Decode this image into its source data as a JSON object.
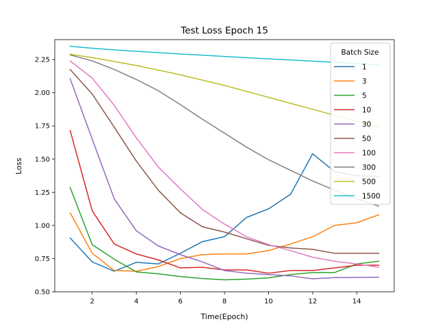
{
  "chart_data": {
    "type": "line",
    "title": "Test Loss Epoch 15",
    "xlabel": "Time(Epoch)",
    "ylabel": "Loss",
    "xlim": [
      0.3,
      15.7
    ],
    "ylim": [
      0.5,
      2.4
    ],
    "x_ticks": [
      2,
      4,
      6,
      8,
      10,
      12,
      14
    ],
    "y_ticks": [
      0.5,
      0.75,
      1.0,
      1.25,
      1.5,
      1.75,
      2.0,
      2.25
    ],
    "y_tick_labels": [
      "0.50",
      "0.75",
      "1.00",
      "1.25",
      "1.50",
      "1.75",
      "2.00",
      "2.25"
    ],
    "grid": false,
    "legend_title": "Batch Size",
    "legend_position": "upper-right",
    "x": [
      1,
      2,
      3,
      4,
      5,
      6,
      7,
      8,
      9,
      10,
      11,
      12,
      13,
      14,
      15
    ],
    "series": [
      {
        "name": "1",
        "color": "#1f77b4",
        "values": [
          0.905,
          0.725,
          0.655,
          0.722,
          0.71,
          0.79,
          0.878,
          0.915,
          1.06,
          1.125,
          1.235,
          1.54,
          1.405,
          1.375,
          1.37
        ]
      },
      {
        "name": "3",
        "color": "#ff7f0e",
        "values": [
          1.095,
          0.79,
          0.66,
          0.655,
          0.69,
          0.75,
          0.78,
          0.785,
          0.785,
          0.81,
          0.86,
          0.915,
          1.0,
          1.02,
          1.08
        ]
      },
      {
        "name": "5",
        "color": "#2ca02c",
        "values": [
          1.285,
          0.855,
          0.745,
          0.65,
          0.635,
          0.615,
          0.6,
          0.59,
          0.595,
          0.605,
          0.63,
          0.645,
          0.645,
          0.71,
          0.73
        ]
      },
      {
        "name": "10",
        "color": "#d62728",
        "values": [
          1.715,
          1.11,
          0.86,
          0.785,
          0.74,
          0.68,
          0.685,
          0.665,
          0.665,
          0.64,
          0.66,
          0.66,
          0.68,
          0.7,
          0.7
        ]
      },
      {
        "name": "30",
        "color": "#9467bd",
        "values": [
          2.105,
          1.65,
          1.2,
          0.96,
          0.845,
          0.78,
          0.725,
          0.66,
          0.64,
          0.63,
          0.62,
          0.598,
          0.607,
          0.608,
          0.61
        ]
      },
      {
        "name": "50",
        "color": "#8c564b",
        "values": [
          2.175,
          1.99,
          1.74,
          1.485,
          1.265,
          1.095,
          0.99,
          0.95,
          0.9,
          0.85,
          0.83,
          0.82,
          0.79,
          0.79,
          0.79
        ]
      },
      {
        "name": "100",
        "color": "#e377c2",
        "values": [
          2.24,
          2.11,
          1.905,
          1.66,
          1.44,
          1.275,
          1.12,
          1.01,
          0.915,
          0.855,
          0.81,
          0.76,
          0.73,
          0.71,
          0.685
        ]
      },
      {
        "name": "300",
        "color": "#7f7f7f",
        "values": [
          2.285,
          2.24,
          2.175,
          2.1,
          2.015,
          1.91,
          1.8,
          1.695,
          1.59,
          1.495,
          1.415,
          1.335,
          1.265,
          1.2,
          1.145
        ]
      },
      {
        "name": "500",
        "color": "#bcbd22",
        "values": [
          2.29,
          2.265,
          2.235,
          2.205,
          2.17,
          2.135,
          2.095,
          2.055,
          2.01,
          1.965,
          1.92,
          1.875,
          1.83,
          1.785,
          1.74
        ]
      },
      {
        "name": "1500",
        "color": "#17becf",
        "values": [
          2.35,
          2.335,
          2.323,
          2.312,
          2.302,
          2.292,
          2.283,
          2.273,
          2.264,
          2.255,
          2.247,
          2.238,
          2.229,
          2.22,
          2.211
        ]
      }
    ]
  }
}
